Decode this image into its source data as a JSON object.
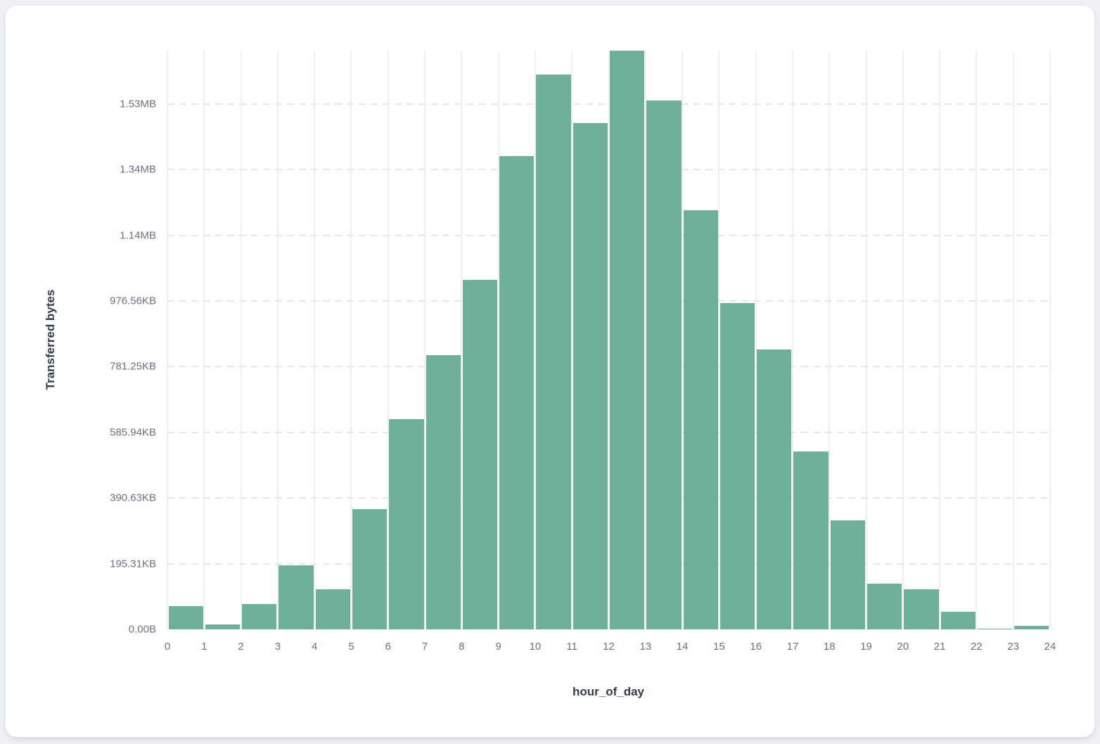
{
  "chart_data": {
    "type": "bar",
    "subtype": "histogram",
    "title": "",
    "xlabel": "hour_of_day",
    "ylabel": "Transferred bytes",
    "bar_color": "#6fb09b",
    "grid": true,
    "legend": false,
    "x_ticks": [
      "0",
      "1",
      "2",
      "3",
      "4",
      "5",
      "6",
      "7",
      "8",
      "9",
      "10",
      "11",
      "12",
      "13",
      "14",
      "15",
      "16",
      "17",
      "18",
      "19",
      "20",
      "21",
      "22",
      "23",
      "24"
    ],
    "xlim": [
      0,
      24
    ],
    "ylim_kb": [
      0,
      1721
    ],
    "y_ticks": [
      {
        "label": "0.00B",
        "kb": 0
      },
      {
        "label": "195.31KB",
        "kb": 195.3125
      },
      {
        "label": "390.63KB",
        "kb": 390.625
      },
      {
        "label": "585.94KB",
        "kb": 585.9375
      },
      {
        "label": "781.25KB",
        "kb": 781.25
      },
      {
        "label": "976.56KB",
        "kb": 976.5625
      },
      {
        "label": "1.14MB",
        "kb": 1171.875
      },
      {
        "label": "1.34MB",
        "kb": 1367.1875
      },
      {
        "label": "1.53MB",
        "kb": 1562.5
      }
    ],
    "categories": [
      0,
      1,
      2,
      3,
      4,
      5,
      6,
      7,
      8,
      9,
      10,
      11,
      12,
      13,
      14,
      15,
      16,
      17,
      18,
      19,
      20,
      21,
      22,
      23
    ],
    "values_kb": [
      70,
      15,
      75,
      190,
      120,
      358,
      625,
      816,
      1039,
      1407,
      1650,
      1506,
      1722,
      1573,
      1247,
      971,
      833,
      530,
      325,
      135,
      120,
      53,
      2,
      10
    ]
  }
}
